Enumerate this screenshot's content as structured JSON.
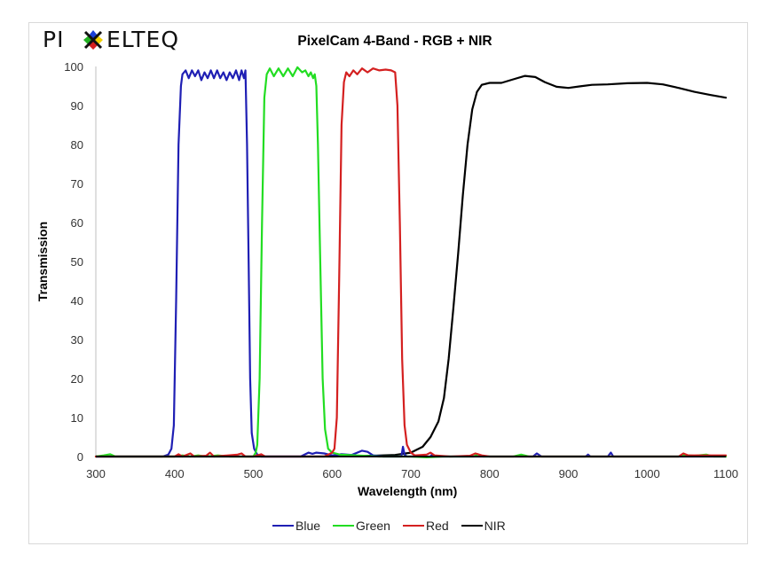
{
  "logo": {
    "text": "PIXELTEQ",
    "icon": "pixelteq-color-x-logo"
  },
  "chart_data": {
    "type": "line",
    "title": "PixelCam 4-Band - RGB + NIR",
    "xlabel": "Wavelength (nm)",
    "ylabel": "Transmission",
    "xlim": [
      300,
      1100
    ],
    "ylim": [
      0,
      100
    ],
    "x_ticks": [
      300,
      400,
      500,
      600,
      700,
      800,
      900,
      1000,
      1100
    ],
    "y_ticks": [
      0,
      10,
      20,
      30,
      40,
      50,
      60,
      70,
      80,
      90,
      100
    ],
    "grid": false,
    "legend_position": "bottom",
    "series": [
      {
        "name": "Blue",
        "color": "#1f1fb4",
        "points": [
          [
            300,
            0
          ],
          [
            385,
            0
          ],
          [
            392,
            0.5
          ],
          [
            396,
            2
          ],
          [
            399,
            8
          ],
          [
            402,
            40
          ],
          [
            405,
            80
          ],
          [
            408,
            95
          ],
          [
            410,
            98
          ],
          [
            414,
            99
          ],
          [
            418,
            97
          ],
          [
            422,
            99
          ],
          [
            426,
            97.5
          ],
          [
            430,
            99
          ],
          [
            434,
            96.5
          ],
          [
            438,
            98.5
          ],
          [
            442,
            97
          ],
          [
            446,
            99
          ],
          [
            450,
            97
          ],
          [
            454,
            99
          ],
          [
            458,
            97
          ],
          [
            462,
            98.5
          ],
          [
            466,
            96.5
          ],
          [
            470,
            98.5
          ],
          [
            474,
            97
          ],
          [
            478,
            99
          ],
          [
            482,
            96.5
          ],
          [
            485,
            99
          ],
          [
            488,
            97
          ],
          [
            490,
            99
          ],
          [
            492,
            80
          ],
          [
            494,
            50
          ],
          [
            496,
            20
          ],
          [
            498,
            6
          ],
          [
            501,
            2
          ],
          [
            505,
            0.5
          ],
          [
            510,
            0
          ],
          [
            560,
            0
          ],
          [
            570,
            1
          ],
          [
            575,
            0.7
          ],
          [
            580,
            1
          ],
          [
            590,
            0.8
          ],
          [
            600,
            0.3
          ],
          [
            612,
            0.6
          ],
          [
            625,
            0.4
          ],
          [
            638,
            1.5
          ],
          [
            645,
            1.2
          ],
          [
            652,
            0.3
          ],
          [
            665,
            0
          ],
          [
            688,
            0
          ],
          [
            690,
            2.5
          ],
          [
            692,
            0.5
          ],
          [
            695,
            0
          ],
          [
            725,
            0
          ],
          [
            727,
            0.6
          ],
          [
            730,
            0
          ],
          [
            855,
            0
          ],
          [
            860,
            0.8
          ],
          [
            866,
            0
          ],
          [
            922,
            0
          ],
          [
            925,
            0.5
          ],
          [
            928,
            0
          ],
          [
            950,
            0
          ],
          [
            954,
            1
          ],
          [
            957,
            0
          ],
          [
            1100,
            0
          ]
        ]
      },
      {
        "name": "Green",
        "color": "#22dd22",
        "points": [
          [
            300,
            0
          ],
          [
            310,
            0.3
          ],
          [
            318,
            0.6
          ],
          [
            325,
            0
          ],
          [
            400,
            0
          ],
          [
            410,
            0.3
          ],
          [
            420,
            0
          ],
          [
            430,
            0.3
          ],
          [
            440,
            0
          ],
          [
            455,
            0.3
          ],
          [
            470,
            0
          ],
          [
            500,
            0
          ],
          [
            503,
            1
          ],
          [
            505,
            3
          ],
          [
            508,
            20
          ],
          [
            511,
            60
          ],
          [
            514,
            92
          ],
          [
            517,
            98
          ],
          [
            521,
            99.5
          ],
          [
            526,
            97.5
          ],
          [
            532,
            99.5
          ],
          [
            538,
            97.5
          ],
          [
            544,
            99.5
          ],
          [
            550,
            97.5
          ],
          [
            556,
            99.8
          ],
          [
            562,
            98.5
          ],
          [
            566,
            99
          ],
          [
            570,
            97.5
          ],
          [
            573,
            98.5
          ],
          [
            576,
            97
          ],
          [
            578,
            98
          ],
          [
            580,
            95
          ],
          [
            582,
            80
          ],
          [
            585,
            50
          ],
          [
            588,
            20
          ],
          [
            591,
            7
          ],
          [
            595,
            2
          ],
          [
            600,
            1
          ],
          [
            610,
            0.5
          ],
          [
            640,
            0.2
          ],
          [
            660,
            0
          ],
          [
            700,
            0
          ],
          [
            720,
            -0.3
          ],
          [
            740,
            0
          ],
          [
            780,
            0
          ],
          [
            785,
            0.6
          ],
          [
            792,
            0
          ],
          [
            830,
            0
          ],
          [
            840,
            0.5
          ],
          [
            850,
            0
          ],
          [
            1040,
            0
          ],
          [
            1045,
            0.4
          ],
          [
            1060,
            0.2
          ],
          [
            1075,
            0.5
          ],
          [
            1085,
            0
          ],
          [
            1100,
            0
          ]
        ]
      },
      {
        "name": "Red",
        "color": "#d42020",
        "points": [
          [
            300,
            0
          ],
          [
            400,
            0
          ],
          [
            405,
            0.6
          ],
          [
            410,
            0
          ],
          [
            420,
            0.8
          ],
          [
            425,
            0
          ],
          [
            440,
            0.2
          ],
          [
            445,
            1
          ],
          [
            450,
            0
          ],
          [
            480,
            0.5
          ],
          [
            485,
            0.8
          ],
          [
            490,
            0
          ],
          [
            500,
            0
          ],
          [
            510,
            0.6
          ],
          [
            515,
            0
          ],
          [
            590,
            0
          ],
          [
            595,
            0.5
          ],
          [
            600,
            1
          ],
          [
            603,
            2
          ],
          [
            606,
            10
          ],
          [
            609,
            45
          ],
          [
            612,
            85
          ],
          [
            615,
            96
          ],
          [
            618,
            98.5
          ],
          [
            622,
            97.5
          ],
          [
            627,
            99
          ],
          [
            632,
            98
          ],
          [
            638,
            99.5
          ],
          [
            645,
            98.5
          ],
          [
            652,
            99.5
          ],
          [
            660,
            99
          ],
          [
            668,
            99.2
          ],
          [
            675,
            99
          ],
          [
            680,
            98.5
          ],
          [
            683,
            90
          ],
          [
            686,
            60
          ],
          [
            689,
            25
          ],
          [
            692,
            8
          ],
          [
            695,
            3
          ],
          [
            700,
            1
          ],
          [
            705,
            0.3
          ],
          [
            720,
            0.5
          ],
          [
            725,
            1
          ],
          [
            730,
            0.3
          ],
          [
            750,
            0
          ],
          [
            775,
            0.2
          ],
          [
            782,
            0.8
          ],
          [
            790,
            0.3
          ],
          [
            800,
            0
          ],
          [
            1040,
            0
          ],
          [
            1046,
            0.8
          ],
          [
            1052,
            0.3
          ],
          [
            1100,
            0.3
          ]
        ]
      },
      {
        "name": "NIR",
        "color": "#000000",
        "points": [
          [
            300,
            0
          ],
          [
            600,
            0
          ],
          [
            650,
            0.2
          ],
          [
            680,
            0.4
          ],
          [
            700,
            1
          ],
          [
            715,
            2.5
          ],
          [
            725,
            5
          ],
          [
            735,
            9
          ],
          [
            742,
            15
          ],
          [
            748,
            25
          ],
          [
            754,
            38
          ],
          [
            760,
            52
          ],
          [
            766,
            67
          ],
          [
            772,
            80
          ],
          [
            778,
            89
          ],
          [
            784,
            93.5
          ],
          [
            790,
            95.3
          ],
          [
            800,
            95.8
          ],
          [
            815,
            95.8
          ],
          [
            830,
            96.7
          ],
          [
            845,
            97.6
          ],
          [
            858,
            97.3
          ],
          [
            870,
            96
          ],
          [
            885,
            94.8
          ],
          [
            900,
            94.5
          ],
          [
            915,
            94.9
          ],
          [
            930,
            95.3
          ],
          [
            950,
            95.4
          ],
          [
            975,
            95.7
          ],
          [
            1000,
            95.8
          ],
          [
            1020,
            95.4
          ],
          [
            1040,
            94.5
          ],
          [
            1060,
            93.5
          ],
          [
            1080,
            92.7
          ],
          [
            1100,
            92
          ]
        ]
      }
    ]
  }
}
